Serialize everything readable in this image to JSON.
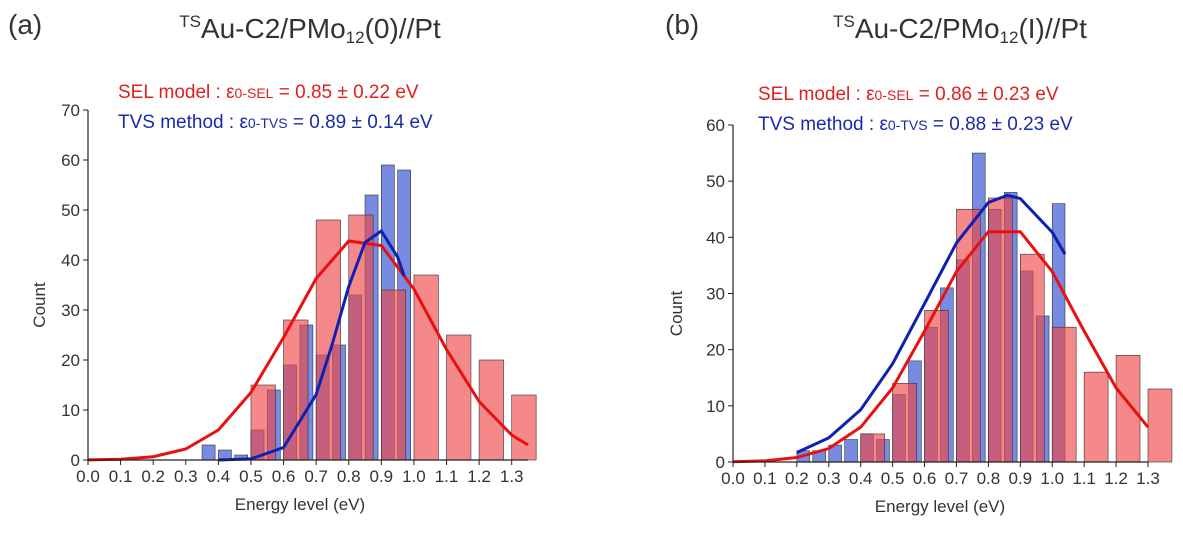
{
  "chart_data": [
    {
      "type": "histogram",
      "panel_label": "(a)",
      "title": {
        "sup": "TS",
        "main": "Au-C2/PMo",
        "sub": "12",
        "suffix": "(0)//Pt"
      },
      "annotations": [
        {
          "text": "SEL model : ε",
          "sub": "0-SEL",
          "rest": " = 0.85 ± 0.22 eV",
          "color": "#e02020"
        },
        {
          "text": "TVS method : ε",
          "sub": "0-TVS",
          "rest": " = 0.89 ± 0.14 eV",
          "color": "#1a2aa8"
        }
      ],
      "xlabel": "Energy level (eV)",
      "ylabel": "Count",
      "xlim": [
        0,
        1.35
      ],
      "ylim": [
        0,
        70
      ],
      "xticks": [
        {
          "value": 0,
          "label": "0.0"
        },
        0.1,
        0.2,
        0.3,
        0.4,
        0.5,
        0.6,
        0.7,
        0.8,
        0.9,
        {
          "value": 1,
          "label": "1.0"
        },
        1.1,
        1.2,
        1.3
      ],
      "yticks": [
        0,
        10,
        20,
        30,
        40,
        50,
        60,
        70
      ],
      "series": [
        {
          "kind": "hist",
          "color": "#4a64d8",
          "bins": [
            0.35,
            0.4,
            0.45,
            0.5,
            0.55,
            0.6,
            0.65,
            0.7,
            0.75,
            0.8,
            0.85,
            0.9,
            0.95,
            1.0
          ],
          "values": [
            3,
            2,
            1,
            6,
            14,
            19,
            27,
            21,
            23,
            33,
            53,
            59,
            58
          ]
        },
        {
          "kind": "hist",
          "color": "#f04848",
          "bins": [
            0.5,
            0.6,
            0.7,
            0.8,
            0.9,
            1.0,
            1.1,
            1.2,
            1.3,
            1.4
          ],
          "values": [
            15,
            28,
            48,
            49,
            34,
            37,
            25,
            20,
            13
          ]
        },
        {
          "kind": "fit",
          "color": "#e81010",
          "x": [
            0,
            0.1,
            0.2,
            0.3,
            0.4,
            0.5,
            0.6,
            0.7,
            0.8,
            0.9,
            1.0,
            1.1,
            1.2,
            1.3,
            1.35
          ],
          "values": [
            0.03,
            0.16,
            0.65,
            2.2,
            6.0,
            13.5,
            24.5,
            36.3,
            43.8,
            42.9,
            34.2,
            22.1,
            11.7,
            5.0,
            3.0
          ]
        },
        {
          "kind": "fit",
          "color": "#1020b0",
          "x": [
            0.4,
            0.5,
            0.6,
            0.7,
            0.75,
            0.8,
            0.85,
            0.9,
            0.95,
            0.97
          ],
          "values": [
            0,
            0.23,
            2.5,
            13.1,
            23.3,
            34.7,
            43.5,
            45.8,
            40.6,
            36.8
          ]
        }
      ]
    },
    {
      "type": "histogram",
      "panel_label": "(b)",
      "title": {
        "sup": "TS",
        "main": "Au-C2/PMo",
        "sub": "12",
        "suffix": "(I)//Pt"
      },
      "annotations": [
        {
          "text": "SEL model : ε",
          "sub": "0-SEL",
          "rest": " = 0.86 ± 0.23 eV",
          "color": "#e02020"
        },
        {
          "text": "TVS method : ε",
          "sub": "0-TVS",
          "rest": " = 0.88 ± 0.23 eV",
          "color": "#1a2aa8"
        }
      ],
      "xlabel": "Energy level (eV)",
      "ylabel": "Count",
      "xlim": [
        0,
        1.3
      ],
      "ylim": [
        0,
        60
      ],
      "xticks": [
        {
          "value": 0,
          "label": "0.0"
        },
        0.1,
        0.2,
        0.3,
        0.4,
        0.5,
        0.6,
        0.7,
        0.8,
        0.9,
        {
          "value": 1,
          "label": "1.0"
        },
        1.1,
        1.2,
        1.3
      ],
      "yticks": [
        0,
        10,
        20,
        30,
        40,
        50,
        60
      ],
      "series": [
        {
          "kind": "hist",
          "color": "#4a64d8",
          "bins": [
            0.2,
            0.25,
            0.3,
            0.35,
            0.4,
            0.45,
            0.5,
            0.55,
            0.6,
            0.65,
            0.7,
            0.75,
            0.8,
            0.85,
            0.9,
            0.95,
            1.0,
            1.05
          ],
          "values": [
            2,
            2,
            3,
            4,
            5,
            4,
            12,
            18,
            24,
            31,
            36,
            55,
            45,
            48,
            34,
            26,
            46
          ]
        },
        {
          "kind": "hist",
          "color": "#f04848",
          "bins": [
            0.4,
            0.5,
            0.6,
            0.7,
            0.8,
            0.9,
            1.0,
            1.1,
            1.2,
            1.3,
            1.4
          ],
          "values": [
            5,
            14,
            27,
            45,
            47,
            37,
            24,
            16,
            19,
            13
          ]
        },
        {
          "kind": "fit",
          "color": "#e81010",
          "x": [
            0,
            0.1,
            0.2,
            0.3,
            0.4,
            0.5,
            0.6,
            0.7,
            0.8,
            0.9,
            1.0,
            1.1,
            1.2,
            1.3
          ],
          "values": [
            0.05,
            0.2,
            0.8,
            2.4,
            6.2,
            13.2,
            23.3,
            33.9,
            41.0,
            41.0,
            33.9,
            23.3,
            13.2,
            6.2
          ]
        },
        {
          "kind": "fit",
          "color": "#1020b0",
          "x": [
            0.2,
            0.3,
            0.4,
            0.5,
            0.6,
            0.7,
            0.8,
            0.86,
            0.9,
            1.0,
            1.04
          ],
          "values": [
            1.7,
            4.3,
            9.3,
            17.5,
            28.2,
            39.0,
            46.2,
            47.5,
            46.9,
            40.9,
            37.0
          ]
        }
      ]
    }
  ]
}
